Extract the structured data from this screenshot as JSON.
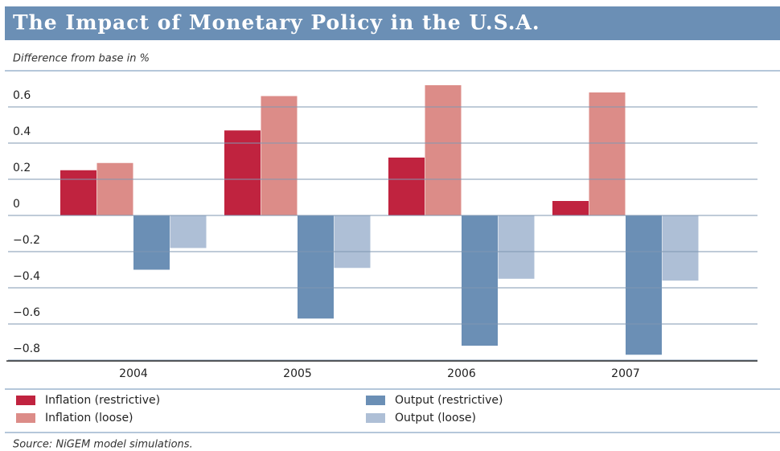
{
  "chart_data": {
    "type": "bar",
    "title": "The Impact of Monetary Policy in the U.S.A.",
    "subtitle": "Difference from base in %",
    "source": "Source: NiGEM model simulations.",
    "categories": [
      "2004",
      "2005",
      "2006",
      "2007"
    ],
    "series": [
      {
        "name": "Inflation (restrictive)",
        "color": "#c0233f",
        "values": [
          0.25,
          0.47,
          0.32,
          0.08
        ]
      },
      {
        "name": "Inflation (loose)",
        "color": "#dc8c88",
        "values": [
          0.29,
          0.66,
          0.72,
          0.68
        ]
      },
      {
        "name": "Output (restrictive)",
        "color": "#6b8fb5",
        "values": [
          -0.3,
          -0.57,
          -0.72,
          -0.77
        ]
      },
      {
        "name": "Output (loose)",
        "color": "#aebfd6",
        "values": [
          -0.18,
          -0.29,
          -0.35,
          -0.36
        ]
      }
    ],
    "ylim": [
      -0.8,
      0.8
    ],
    "yticks": [
      0.6,
      0.4,
      0.2,
      0,
      {
        "value": -0.2,
        "label": "−0.2"
      },
      {
        "value": -0.4,
        "label": "−0.4"
      },
      {
        "value": -0.6,
        "label": "−0.6"
      },
      {
        "value": -0.8,
        "label": "−0.8"
      }
    ],
    "grid": true
  }
}
